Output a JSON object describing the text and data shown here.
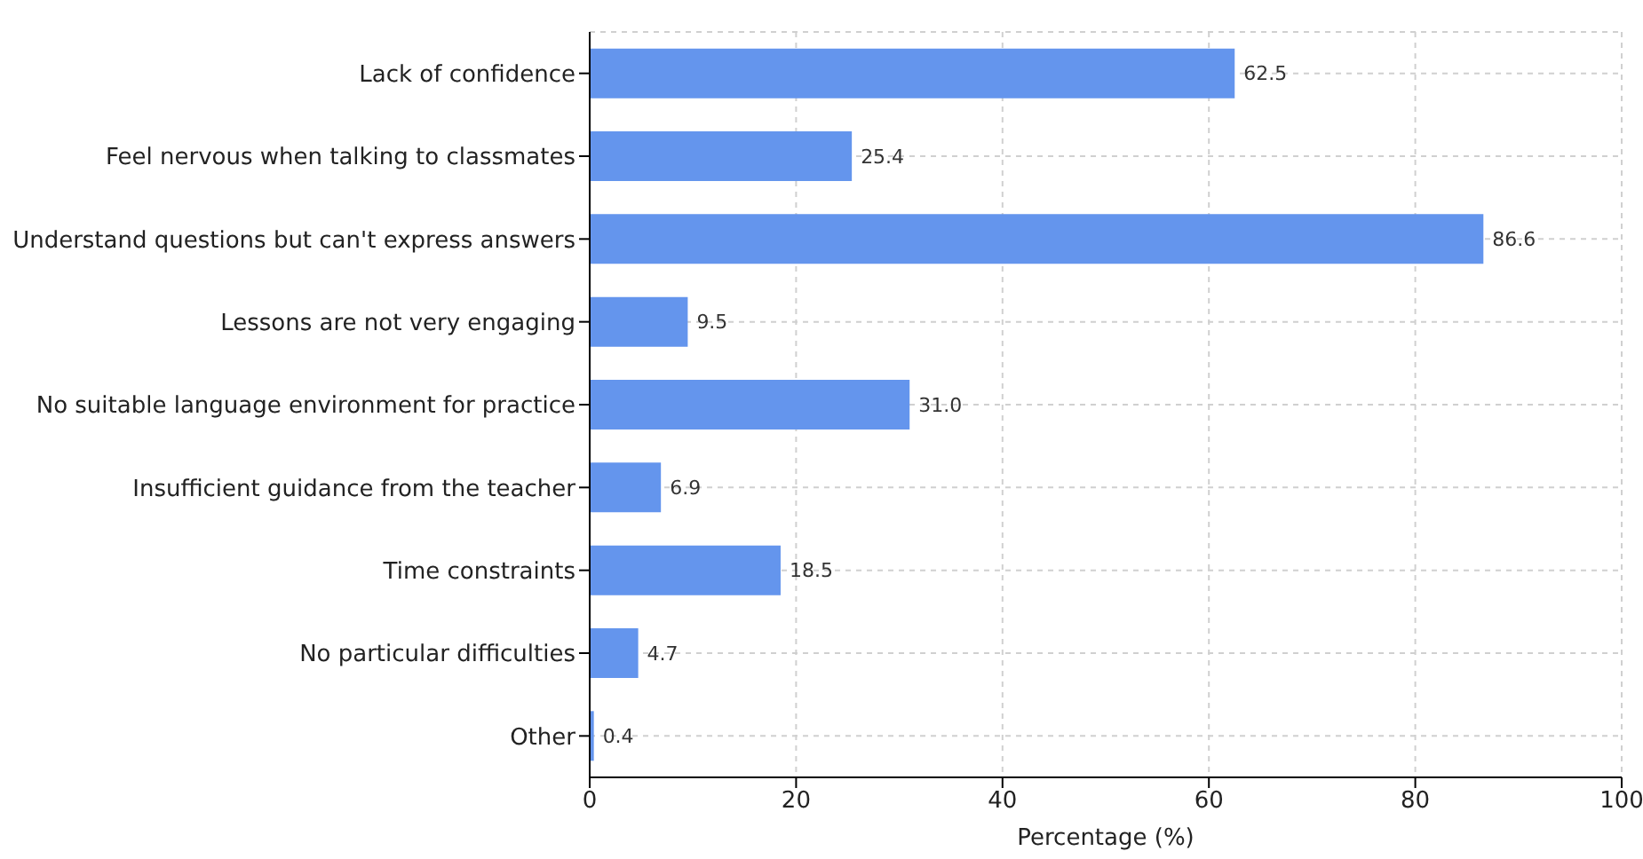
{
  "chart_data": {
    "type": "bar",
    "orientation": "horizontal",
    "xlabel": "Percentage (%)",
    "categories": [
      "Lack of confidence",
      "Feel nervous when talking to classmates",
      "Understand questions but can't express answers",
      "Lessons are not very engaging",
      "No suitable language environment for practice",
      "Insufficient guidance from the teacher",
      "Time constraints",
      "No particular difficulties",
      "Other"
    ],
    "values": [
      62.5,
      25.4,
      86.6,
      9.5,
      31.0,
      6.9,
      18.5,
      4.7,
      0.4
    ],
    "value_labels": [
      "62.5",
      "25.4",
      "86.6",
      "9.5",
      "31.0",
      "6.9",
      "18.5",
      "4.7",
      "0.4"
    ],
    "color": "#6495ed",
    "xlim": [
      0,
      100
    ],
    "xticks": [
      0,
      20,
      40,
      60,
      80,
      100
    ],
    "grid": true
  }
}
